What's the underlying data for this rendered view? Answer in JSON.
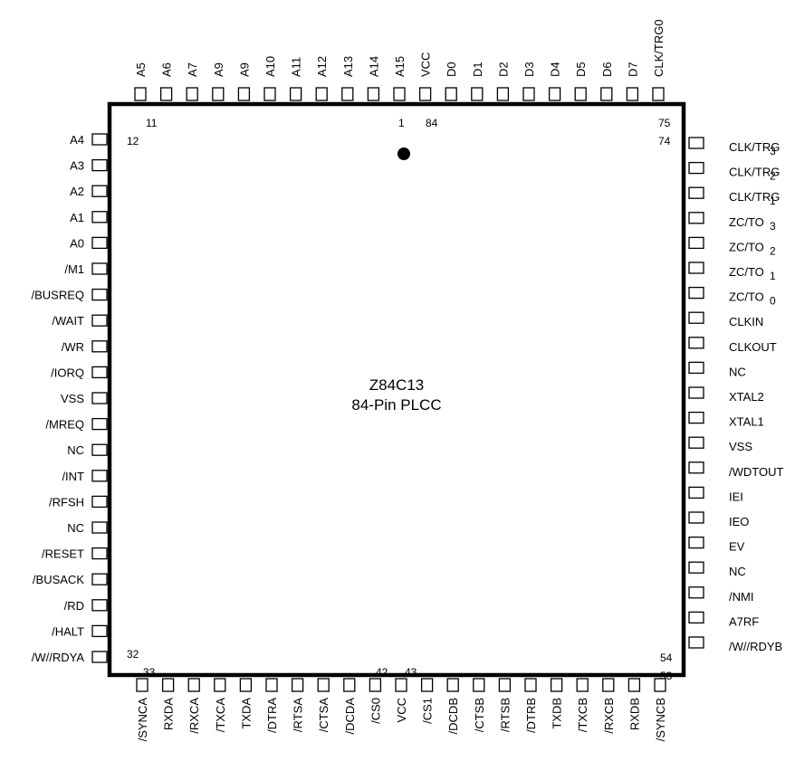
{
  "chip": {
    "part_number": "Z84C13",
    "package": "84-Pin PLCC"
  },
  "pin_numbers": {
    "top_left": "11",
    "top_mid_a": "1",
    "top_mid_b": "84",
    "top_right": "75",
    "right_top": "74",
    "left_top": "12",
    "left_bottom": "32",
    "bottom_left": "33",
    "bottom_mid_a": "42",
    "bottom_mid_b": "43",
    "right_bottom": "54",
    "bottom_right": "53"
  },
  "pins": {
    "top": [
      "A5",
      "A6",
      "A7",
      "A9",
      "A9",
      "A10",
      "A11",
      "A12",
      "A13",
      "A14",
      "A15",
      "VCC",
      "D0",
      "D1",
      "D2",
      "D3",
      "D4",
      "D5",
      "D6",
      "D7",
      "CLK/TRG0"
    ],
    "left": [
      "A4",
      "A3",
      "A2",
      "A1",
      "A0",
      "/M1",
      "/BUSREQ",
      "/WAIT",
      "/WR",
      "/IORQ",
      "VSS",
      "/MREQ",
      "NC",
      "/INT",
      "/RFSH",
      "NC",
      "/RESET",
      "/BUSACK",
      "/RD",
      "/HALT",
      "/W//RDYA"
    ],
    "right": [
      "CLK/TRG",
      "CLK/TRG",
      "CLK/TRG",
      "ZC/TO",
      "ZC/TO",
      "ZC/TO",
      "ZC/TO",
      "CLKIN",
      "CLKOUT",
      "NC",
      "XTAL2",
      "XTAL1",
      "VSS",
      "/WDTOUT",
      "IEI",
      "IEO",
      "EV",
      "NC",
      "/NMI",
      "A7RF",
      "/W//RDYB"
    ],
    "right_subscripts": [
      "3",
      "2",
      "1",
      "3",
      "2",
      "1",
      "0",
      "",
      "",
      "",
      "",
      "",
      "",
      "",
      "",
      "",
      "",
      "",
      "",
      "",
      ""
    ],
    "bottom": [
      "/SYNCA",
      "RXDA",
      "/RXCA",
      "/TXCA",
      "TXDA",
      "/DTRA",
      "/RTSA",
      "/CTSA",
      "/DCDA",
      "/CS0",
      "VCC",
      "/CS1",
      "/DCDB",
      "/CTSB",
      "/RTSB",
      "/DTRB",
      "TXDB",
      "/TXCB",
      "/RXCB",
      "RXDB",
      "/SYNCB"
    ]
  }
}
